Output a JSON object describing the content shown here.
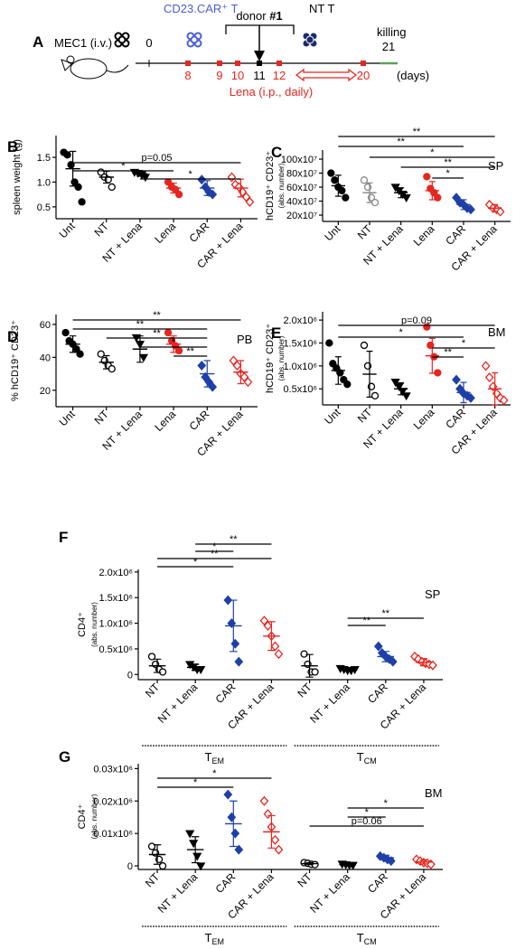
{
  "panel_a": {
    "label": "A",
    "mec1": "MEC1 (i.v.)",
    "car_t": "CD23.CAR⁺ T",
    "donor": "donor",
    "donor_num": "#1",
    "nt_t": "NT T",
    "killing": "killing",
    "day0": "0",
    "day11": "11",
    "day21": "21",
    "red_days": [
      "8",
      "9",
      "10",
      "12",
      "20"
    ],
    "days_unit": "(days)",
    "lena": "Lena (i.p., daily)"
  },
  "chart_data": [
    {
      "type": "dot",
      "panel": "B",
      "ylabel": "spleen weight (g)",
      "categories": [
        "Unt",
        "NT",
        "NT + Lena",
        "Lena",
        "CAR",
        "CAR + Lena"
      ],
      "groups": [
        {
          "color": "#000000",
          "marker": "circle",
          "filled": true,
          "values": [
            1.6,
            1.55,
            1.35,
            1.0,
            0.9,
            0.6
          ],
          "mean": 1.27,
          "sd": 0.35
        },
        {
          "color": "#000000",
          "marker": "circle",
          "filled": false,
          "values": [
            1.2,
            1.1,
            1.05,
            0.9
          ],
          "mean": 1.1,
          "sd": 0.12
        },
        {
          "color": "#000000",
          "marker": "triangle",
          "filled": true,
          "values": [
            1.2,
            1.18,
            1.15,
            1.1
          ],
          "mean": 1.17,
          "sd": 0.05
        },
        {
          "color": "#e8251f",
          "marker": "circle",
          "filled": true,
          "values": [
            1.0,
            0.9,
            0.85,
            0.75
          ],
          "mean": 0.88,
          "sd": 0.1
        },
        {
          "color": "#1f3fa8",
          "marker": "diamond",
          "filled": true,
          "values": [
            1.05,
            0.9,
            0.8,
            0.75
          ],
          "mean": 0.88,
          "sd": 0.15
        },
        {
          "color": "#e8251f",
          "marker": "diamond",
          "filled": false,
          "values": [
            1.1,
            0.95,
            0.9,
            0.8,
            0.7,
            0.6
          ],
          "mean": 0.88,
          "sd": 0.18
        }
      ],
      "ylim": [
        0.26,
        1.94
      ],
      "yticks": [
        0.5,
        {
          "value": 1,
          "label": "1.0"
        },
        1.5
      ],
      "significance": [
        {
          "label": "p=0.05",
          "from": 0,
          "to": 5
        },
        {
          "label": "*",
          "from": 0,
          "to": 3
        },
        {
          "label": "*",
          "from": 2,
          "to": 5
        }
      ]
    },
    {
      "type": "dot",
      "panel": "C",
      "ylabel": "hCD19⁺ CD23⁺",
      "ylabel2": "(abs. number)",
      "annotation": "SP",
      "categories": [
        "Unt",
        "NT",
        "NT + Lena",
        "Lena",
        "CAR",
        "CAR + Lena"
      ],
      "groups": [
        {
          "color": "#000000",
          "marker": "circle",
          "filled": true,
          "values": [
            800000000.0,
            700000000.0,
            600000000.0,
            550000000.0,
            450000000.0
          ],
          "mean": 620000000.0,
          "sd": 150000000.0
        },
        {
          "color": "#888888",
          "marker": "circle",
          "filled": false,
          "values": [
            700000000.0,
            600000000.0,
            450000000.0,
            380000000.0
          ],
          "mean": 520000000.0,
          "sd": 140000000.0
        },
        {
          "color": "#000000",
          "marker": "triangle",
          "filled": true,
          "values": [
            600000000.0,
            550000000.0,
            500000000.0,
            450000000.0
          ],
          "mean": 520000000.0,
          "sd": 70000000.0
        },
        {
          "color": "#e8251f",
          "marker": "circle",
          "filled": true,
          "values": [
            750000000.0,
            580000000.0,
            520000000.0,
            450000000.0
          ],
          "mean": 550000000.0,
          "sd": 130000000.0
        },
        {
          "color": "#1f3fa8",
          "marker": "diamond",
          "filled": true,
          "values": [
            450000000.0,
            380000000.0,
            350000000.0,
            300000000.0,
            280000000.0
          ],
          "mean": 350000000.0,
          "sd": 70000000.0
        },
        {
          "color": "#e8251f",
          "marker": "diamond",
          "filled": false,
          "values": [
            350000000.0,
            300000000.0,
            280000000.0,
            250000000.0
          ],
          "mean": 300000000.0,
          "sd": 50000000.0
        }
      ],
      "ylim": [
        110000000.0,
        1130000000.0
      ],
      "yticks": [
        {
          "value": 200000000.0,
          "label": "20x10⁷"
        },
        {
          "value": 400000000.0,
          "label": "40x10⁷"
        },
        {
          "value": 600000000.0,
          "label": "60x10⁷"
        },
        {
          "value": 800000000.0,
          "label": "80x10⁷"
        },
        {
          "value": 1000000000.0,
          "label": "100x10⁷"
        }
      ],
      "significance": [
        {
          "label": "**",
          "from": 0,
          "to": 5
        },
        {
          "label": "**",
          "from": 0,
          "to": 4
        },
        {
          "label": "*",
          "from": 1,
          "to": 5
        },
        {
          "label": "**",
          "from": 2,
          "to": 5
        },
        {
          "label": "*",
          "from": 3,
          "to": 4
        }
      ]
    },
    {
      "type": "dot",
      "panel": "D",
      "ylabel": "% hCD19⁺ CD23⁺",
      "annotation": "PB",
      "categories": [
        "Unt",
        "NT",
        "NT + Lena",
        "Lena",
        "CAR",
        "CAR + Lena"
      ],
      "groups": [
        {
          "color": "#000000",
          "marker": "circle",
          "filled": true,
          "values": [
            55,
            50,
            48,
            45,
            42
          ],
          "mean": 48,
          "sd": 5
        },
        {
          "color": "#000000",
          "marker": "circle",
          "filled": false,
          "values": [
            42,
            38,
            35,
            33
          ],
          "mean": 37,
          "sd": 4
        },
        {
          "color": "#000000",
          "marker": "triangle",
          "filled": true,
          "values": [
            52,
            48,
            40
          ],
          "mean": 45,
          "sd": 8
        },
        {
          "color": "#e8251f",
          "marker": "circle",
          "filled": true,
          "values": [
            55,
            50,
            47,
            44
          ],
          "mean": 48,
          "sd": 5
        },
        {
          "color": "#1f3fa8",
          "marker": "diamond",
          "filled": true,
          "values": [
            35,
            28,
            25,
            22
          ],
          "mean": 30,
          "sd": 8
        },
        {
          "color": "#e8251f",
          "marker": "diamond",
          "filled": false,
          "values": [
            38,
            35,
            30,
            28,
            25
          ],
          "mean": 31,
          "sd": 7
        }
      ],
      "ylim": [
        10,
        66
      ],
      "yticks": [
        20,
        40,
        60
      ],
      "significance": [
        {
          "label": "**",
          "from": 0,
          "to": 5
        },
        {
          "label": "**",
          "from": 0,
          "to": 4
        },
        {
          "label": "**",
          "from": 1,
          "to": 4
        },
        {
          "label": "*",
          "from": 2,
          "to": 4
        },
        {
          "label": "**",
          "from": 3,
          "to": 4
        }
      ]
    },
    {
      "type": "dot",
      "panel": "E",
      "ylabel": "hCD19⁺ CD23⁺",
      "ylabel2": "(abs. number)",
      "annotation": "BM",
      "categories": [
        "Unt",
        "NT",
        "NT + Lena",
        "Lena",
        "CAR",
        "CAR + Lena"
      ],
      "groups": [
        {
          "color": "#000000",
          "marker": "circle",
          "filled": true,
          "values": [
            1500000.0,
            1050000.0,
            950000.0,
            850000.0,
            700000.0,
            600000.0
          ],
          "mean": 900000.0,
          "sd": 300000.0
        },
        {
          "color": "#000000",
          "marker": "circle",
          "filled": false,
          "values": [
            1450000.0,
            1000000.0,
            550000.0,
            350000.0
          ],
          "mean": 820000.0,
          "sd": 500000.0
        },
        {
          "color": "#000000",
          "marker": "triangle",
          "filled": true,
          "values": [
            650000.0,
            550000.0,
            450000.0,
            350000.0
          ],
          "mean": 500000.0,
          "sd": 130000.0
        },
        {
          "color": "#e8251f",
          "marker": "circle",
          "filled": true,
          "values": [
            1850000.0,
            1450000.0,
            1200000.0,
            850000.0
          ],
          "mean": 1220000.0,
          "sd": 380000.0
        },
        {
          "color": "#1f3fa8",
          "marker": "diamond",
          "filled": true,
          "values": [
            700000.0,
            500000.0,
            400000.0,
            350000.0,
            300000.0
          ],
          "mean": 420000.0,
          "sd": 220000.0
        },
        {
          "color": "#e8251f",
          "marker": "diamond",
          "filled": false,
          "values": [
            1000000.0,
            750000.0,
            550000.0,
            400000.0,
            300000.0,
            250000.0
          ],
          "mean": 500000.0,
          "sd": 350000.0
        }
      ],
      "ylim": [
        150000.0,
        2180000.0
      ],
      "yticks": [
        {
          "value": 500000.0,
          "label": "0.5x10⁶"
        },
        {
          "value": 1000000.0,
          "label": "1.0x10⁶"
        },
        {
          "value": 1500000.0,
          "label": "1.5x10⁶"
        },
        {
          "value": 2000000.0,
          "label": "2.0x10⁶"
        }
      ],
      "significance": [
        {
          "label": "p=0.09",
          "from": 0,
          "to": 5
        },
        {
          "label": "*",
          "from": 0,
          "to": 4
        },
        {
          "label": "*",
          "from": 3,
          "to": 5
        },
        {
          "label": "**",
          "from": 3,
          "to": 4
        }
      ]
    },
    {
      "type": "dot",
      "panel": "F",
      "ylabel": "CD4⁺",
      "ylabel2": "(abs. number)",
      "annotation": "SP",
      "categories": [
        "NT",
        "NT + Lena",
        "CAR",
        "CAR + Lena",
        "NT",
        "NT + Lena",
        "CAR",
        "CAR + Lena"
      ],
      "groups": [
        {
          "color": "#000000",
          "marker": "circle",
          "filled": false,
          "values": [
            350000.0,
            200000.0,
            100000.0,
            50000.0
          ],
          "mean": 170000.0,
          "sd": 130000.0
        },
        {
          "color": "#000000",
          "marker": "triangle",
          "filled": true,
          "values": [
            200000.0,
            150000.0,
            100000.0,
            100000.0
          ],
          "mean": 140000.0,
          "sd": 60000.0
        },
        {
          "color": "#1f3fa8",
          "marker": "diamond",
          "filled": true,
          "values": [
            1450000.0,
            1000000.0,
            600000.0,
            250000.0
          ],
          "mean": 950000.0,
          "sd": 500000.0
        },
        {
          "color": "#e8251f",
          "marker": "diamond",
          "filled": false,
          "values": [
            1050000.0,
            950000.0,
            750000.0,
            550000.0,
            400000.0
          ],
          "mean": 750000.0,
          "sd": 280000.0
        },
        {
          "color": "#000000",
          "marker": "circle",
          "filled": false,
          "values": [
            400000.0,
            200000.0,
            50000.0,
            50000.0
          ],
          "mean": 170000.0,
          "sd": 220000.0
        },
        {
          "color": "#000000",
          "marker": "triangle",
          "filled": true,
          "values": [
            120000.0,
            100000.0,
            80000.0,
            80000.0,
            100000.0
          ],
          "mean": 100000.0,
          "sd": 20000.0
        },
        {
          "color": "#1f3fa8",
          "marker": "diamond",
          "filled": true,
          "values": [
            550000.0,
            420000.0,
            350000.0,
            300000.0,
            250000.0
          ],
          "mean": 350000.0,
          "sd": 100000.0
        },
        {
          "color": "#e8251f",
          "marker": "diamond",
          "filled": false,
          "values": [
            350000.0,
            300000.0,
            250000.0,
            220000.0,
            200000.0,
            180000.0
          ],
          "mean": 240000.0,
          "sd": 70000.0
        }
      ],
      "ylim": [
        -100000.0,
        2050000.0
      ],
      "yticks": [
        0,
        {
          "value": 500000.0,
          "label": "0.5x10⁶"
        },
        {
          "value": 1000000.0,
          "label": "1.0x10⁶"
        },
        {
          "value": 1500000.0,
          "label": "1.5x10⁶"
        },
        {
          "value": 2000000.0,
          "label": "2.0x10⁶"
        }
      ],
      "significance": [
        {
          "label": "**",
          "from": 1,
          "to": 3
        },
        {
          "label": "*",
          "from": 1,
          "to": 2
        },
        {
          "label": "**",
          "from": 0,
          "to": 3
        },
        {
          "label": "*",
          "from": 0,
          "to": 2
        },
        {
          "label": "**",
          "from": 5,
          "to": 7
        },
        {
          "label": "**",
          "from": 5,
          "to": 6
        }
      ],
      "group_labels": [
        {
          "main": "T",
          "sub": "EM"
        },
        {
          "main": "T",
          "sub": "CM"
        }
      ]
    },
    {
      "type": "dot",
      "panel": "G",
      "ylabel": "CD4⁺",
      "ylabel2": "(abs. number)",
      "annotation": "BM",
      "categories": [
        "NT",
        "NT + Lena",
        "CAR",
        "CAR + Lena",
        "NT",
        "NT + Lena",
        "CAR",
        "CAR + Lena"
      ],
      "groups": [
        {
          "color": "#000000",
          "marker": "circle",
          "filled": false,
          "values": [
            6000,
            4000,
            2000,
            0
          ],
          "mean": 3500,
          "sd": 3000
        },
        {
          "color": "#000000",
          "marker": "triangle",
          "filled": true,
          "values": [
            10000,
            7000,
            3000,
            0
          ],
          "mean": 5000,
          "sd": 4000
        },
        {
          "color": "#1f3fa8",
          "marker": "diamond",
          "filled": true,
          "values": [
            22000,
            15000,
            10000,
            5000
          ],
          "mean": 13000,
          "sd": 7000
        },
        {
          "color": "#e8251f",
          "marker": "diamond",
          "filled": false,
          "values": [
            20000,
            16000,
            12000,
            8000,
            5000
          ],
          "mean": 10500,
          "sd": 5000
        },
        {
          "color": "#000000",
          "marker": "circle",
          "filled": false,
          "values": [
            1000,
            800,
            500,
            400
          ],
          "mean": 700,
          "sd": 300
        },
        {
          "color": "#000000",
          "marker": "triangle",
          "filled": true,
          "values": [
            600,
            400,
            200,
            200
          ],
          "mean": 400,
          "sd": 200
        },
        {
          "color": "#1f3fa8",
          "marker": "diamond",
          "filled": true,
          "values": [
            3000,
            2500,
            2000,
            1500
          ],
          "mean": 2500,
          "sd": 800
        },
        {
          "color": "#e8251f",
          "marker": "diamond",
          "filled": false,
          "values": [
            2000,
            1500,
            1000,
            800,
            500
          ],
          "mean": 1200,
          "sd": 600
        }
      ],
      "ylim": [
        -1100,
        31500
      ],
      "yticks": [
        0,
        {
          "value": 10000,
          "label": "0.01x10⁶"
        },
        {
          "value": 20000,
          "label": "0.02x10⁶"
        },
        {
          "value": 30000,
          "label": "0.03x10⁶"
        }
      ],
      "significance": [
        {
          "label": "*",
          "from": 0,
          "to": 3
        },
        {
          "label": "*",
          "from": 0,
          "to": 2
        },
        {
          "label": "*",
          "from": 5,
          "to": 7
        },
        {
          "label": "*",
          "from": 5,
          "to": 6
        },
        {
          "label": "p=0.06",
          "from": 4,
          "to": 7
        }
      ],
      "group_labels": [
        {
          "main": "T",
          "sub": "EM"
        },
        {
          "main": "T",
          "sub": "CM"
        }
      ]
    }
  ]
}
